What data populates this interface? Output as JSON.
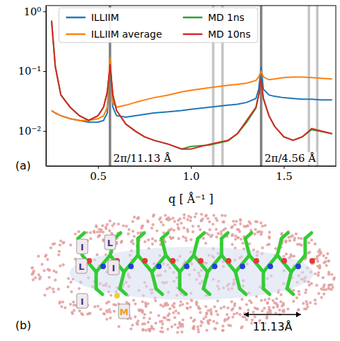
{
  "chart_data": {
    "type": "line",
    "x_label": "q [ Å⁻¹ ]",
    "panel_label": "(a)",
    "x": [
      0.25,
      0.27,
      0.3,
      0.35,
      0.4,
      0.45,
      0.5,
      0.53,
      0.55,
      0.565,
      0.58,
      0.6,
      0.65,
      0.7,
      0.75,
      0.8,
      0.88,
      0.95,
      1.0,
      1.1,
      1.2,
      1.25,
      1.3,
      1.35,
      1.365,
      1.378,
      1.39,
      1.42,
      1.45,
      1.5,
      1.55,
      1.6,
      1.65,
      1.7,
      1.76
    ],
    "series": [
      {
        "name": "ILLIIM",
        "color": "#1f77b4",
        "values": [
          0.022,
          0.02,
          0.018,
          0.016,
          0.015,
          0.014,
          0.014,
          0.015,
          0.02,
          0.15,
          0.025,
          0.018,
          0.017,
          0.018,
          0.019,
          0.02,
          0.021,
          0.022,
          0.023,
          0.025,
          0.027,
          0.028,
          0.03,
          0.035,
          0.05,
          0.12,
          0.05,
          0.04,
          0.038,
          0.036,
          0.035,
          0.034,
          0.034,
          0.033,
          0.033
        ]
      },
      {
        "name": "ILLIIM average",
        "color": "#ff7f0e",
        "values": [
          0.022,
          0.02,
          0.018,
          0.016,
          0.015,
          0.015,
          0.016,
          0.018,
          0.025,
          0.17,
          0.03,
          0.025,
          0.027,
          0.03,
          0.033,
          0.036,
          0.04,
          0.045,
          0.048,
          0.053,
          0.058,
          0.06,
          0.063,
          0.07,
          0.08,
          0.1,
          0.08,
          0.072,
          0.074,
          0.078,
          0.08,
          0.08,
          0.078,
          0.076,
          0.074
        ]
      },
      {
        "name": "MD 1ns",
        "color": "#2ca02c",
        "values": [
          0.7,
          0.12,
          0.04,
          0.025,
          0.018,
          0.015,
          0.018,
          0.025,
          0.045,
          0.12,
          0.04,
          0.022,
          0.013,
          0.01,
          0.008,
          0.007,
          0.006,
          0.005,
          0.0055,
          0.0058,
          0.0068,
          0.009,
          0.014,
          0.024,
          0.04,
          0.07,
          0.035,
          0.018,
          0.012,
          0.008,
          0.007,
          0.008,
          0.0105,
          0.0098,
          0.009
        ]
      },
      {
        "name": "MD 10ns",
        "color": "#d62728",
        "values": [
          0.7,
          0.12,
          0.04,
          0.025,
          0.018,
          0.015,
          0.018,
          0.025,
          0.045,
          0.13,
          0.04,
          0.022,
          0.013,
          0.01,
          0.008,
          0.007,
          0.006,
          0.005,
          0.005,
          0.006,
          0.007,
          0.009,
          0.015,
          0.025,
          0.04,
          0.075,
          0.035,
          0.018,
          0.012,
          0.008,
          0.007,
          0.008,
          0.011,
          0.01,
          0.009
        ]
      }
    ],
    "xlim": [
      0.22,
      1.78
    ],
    "ylim": [
      0.0026,
      1.25
    ],
    "xticks": [
      0.5,
      {
        "value": 1,
        "label": "1.0"
      },
      1.5
    ],
    "yticks": [
      {
        "value": 1,
        "label": "10⁰"
      },
      {
        "value": 0.1,
        "label": "10⁻¹"
      },
      {
        "value": 0.01,
        "label": "10⁻²"
      }
    ],
    "log": "y",
    "legend": "top",
    "reference_lines": [
      0.5645,
      1.378,
      1.12,
      1.17,
      1.635,
      1.68
    ],
    "annotations": [
      {
        "x": 0.5645,
        "text": "2π/11.13 Å"
      },
      {
        "x": 1.378,
        "text": "2π/4.56 Å"
      }
    ]
  },
  "panel_b": {
    "panel_label": "(b)",
    "residue_labels": [
      "I",
      "L",
      "L",
      "I",
      "I",
      "M"
    ],
    "scale_label": "11.13Å"
  }
}
